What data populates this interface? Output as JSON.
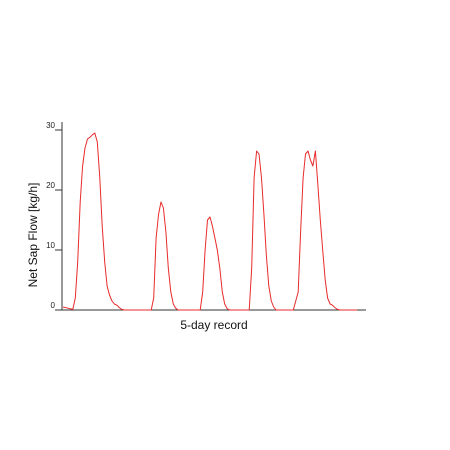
{
  "chart_data": {
    "type": "line",
    "title": "",
    "xlabel": "5-day record",
    "ylabel": "Net Sap Flow [kg/h]",
    "ylim": [
      0,
      30
    ],
    "yticks": [
      "0",
      "10",
      "20",
      "30"
    ],
    "xlim": [
      0,
      120
    ],
    "grid": false,
    "series": [
      {
        "color": "#e82a2a",
        "x": [
          0,
          2,
          4,
          5,
          6,
          7,
          8,
          9,
          10,
          11,
          12,
          13,
          14,
          15,
          16,
          17,
          18,
          19,
          20,
          21,
          22,
          23,
          24,
          25,
          26,
          27,
          28,
          30,
          32,
          34,
          36,
          37,
          38,
          39,
          40,
          41,
          42,
          43,
          44,
          45,
          46,
          47,
          48,
          49,
          50,
          52,
          54,
          56,
          57,
          58,
          59,
          60,
          61,
          62,
          63,
          64,
          65,
          66,
          67,
          68,
          69,
          70,
          72,
          74,
          76,
          77,
          78,
          79,
          80,
          81,
          82,
          83,
          84,
          85,
          86,
          87,
          88,
          89,
          90,
          91,
          92,
          94,
          96,
          97,
          98,
          99,
          100,
          101,
          102,
          103,
          104,
          105,
          106,
          107,
          108,
          109,
          110,
          111,
          112,
          113,
          114,
          116,
          118,
          120
        ],
        "y": [
          0.5,
          0.3,
          0.1,
          2,
          8,
          18,
          24,
          27,
          28.5,
          28.8,
          29.2,
          29.5,
          28,
          22,
          14,
          8,
          4,
          2.5,
          1.5,
          1,
          0.8,
          0.4,
          0.1,
          0,
          0,
          0,
          0,
          0,
          0,
          0,
          0,
          2,
          12,
          16,
          18,
          17,
          13,
          7,
          3,
          1,
          0.3,
          0,
          0,
          0,
          0,
          0,
          0,
          0,
          3,
          10,
          15,
          15.5,
          14,
          12,
          10,
          7,
          3,
          1,
          0.2,
          0,
          0,
          0,
          0,
          0,
          0,
          7,
          22,
          26.5,
          26,
          22,
          16,
          9,
          4,
          1.5,
          0.5,
          0,
          0,
          0,
          0,
          0,
          0,
          0,
          3,
          13,
          22,
          26,
          26.5,
          25,
          24,
          26.5,
          21,
          15,
          10,
          5,
          2,
          1,
          0.8,
          0.4,
          0.1,
          0,
          0,
          0,
          0,
          0
        ]
      }
    ]
  }
}
